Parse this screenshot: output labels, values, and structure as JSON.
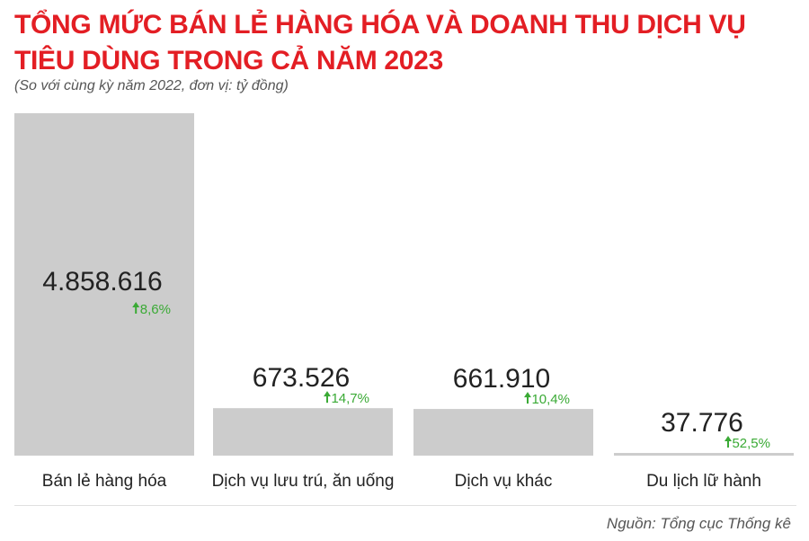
{
  "header": {
    "title": "TỔNG MỨC BÁN LẺ HÀNG HÓA VÀ DOANH THU DỊCH VỤ TIÊU DÙNG TRONG CẢ NĂM 2023",
    "subtitle": "(So với cùng kỳ năm 2022, đơn vị: tỷ đồng)"
  },
  "footer": {
    "source": "Nguồn: Tổng cục Thống kê"
  },
  "chart_data": {
    "type": "bar",
    "title": "TỔNG MỨC BÁN LẺ HÀNG HÓA VÀ DOANH THU DỊCH VỤ TIÊU DÙNG TRONG CẢ NĂM 2023",
    "subtitle": "(So với cùng kỳ năm 2022, đơn vị: tỷ đồng)",
    "categories": [
      "Bán lẻ hàng hóa",
      "Dịch vụ lưu trú, ăn uống",
      "Dịch vụ khác",
      "Du lịch lữ hành"
    ],
    "values": [
      4858616,
      673526,
      661910,
      37776
    ],
    "value_labels": [
      "4.858.616",
      "673.526",
      "661.910",
      "37.776"
    ],
    "changes": [
      "8,6%",
      "14,7%",
      "10,4%",
      "52,5%"
    ],
    "change_direction": "up",
    "xlabel": "",
    "ylabel": "",
    "ylim": [
      0,
      4858616
    ],
    "grid": false,
    "legend": "none",
    "colors": {
      "bar": "#cccccc",
      "value_text": "#222222",
      "change_text": "#3aaa35",
      "title": "#e31e24",
      "baseline": "#d0d0d0"
    },
    "change_icon": "arrow-up-icon"
  }
}
